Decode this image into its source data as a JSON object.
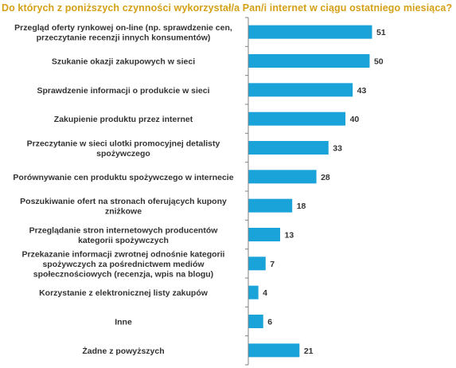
{
  "colors": {
    "title": "#d4a017",
    "bar": "#1aa3d9",
    "axis": "#808080",
    "text": "#333333"
  },
  "chart_data": {
    "type": "bar",
    "orientation": "horizontal",
    "title": "Do których z poniższych czynności wykorzystał/a Pan/i internet w ciągu ostatniego miesiąca?",
    "xlabel": "",
    "ylabel": "",
    "xlim": [
      0,
      51
    ],
    "grid": false,
    "legend": "none",
    "categories": [
      "Przegląd oferty rynkowej on-line (np. sprawdzenie cen, przeczytanie recenzji innych konsumentów)",
      "Szukanie okazji zakupowych w sieci",
      "Sprawdzenie informacji o produkcie w sieci",
      "Zakupienie produktu przez internet",
      "Przeczytanie w sieci ulotki promocyjnej detalisty spożywczego",
      "Porównywanie cen produktu spożywczego w internecie",
      "Poszukiwanie ofert na stronach oferujących kupony zniżkowe",
      "Przeglądanie stron internetowych producentów kategorii spożywczych",
      "Przekazanie informacji zwrotnej odnośnie kategorii spożywczych za pośrednictwem mediów społecznościowych (recenzja, wpis na blogu)",
      "Korzystanie z elektronicznej listy zakupów",
      "Inne",
      "Żadne z powyższych"
    ],
    "label_lines": [
      [
        "Przegląd oferty rynkowej on-line (np. sprawdzenie cen,",
        "przeczytanie recenzji innych konsumentów)"
      ],
      [
        "Szukanie okazji zakupowych w sieci"
      ],
      [
        "Sprawdzenie informacji o produkcie w sieci"
      ],
      [
        "Zakupienie produktu przez internet"
      ],
      [
        "Przeczytanie w sieci ulotki promocyjnej detalisty",
        "spożywczego"
      ],
      [
        "Porównywanie cen produktu spożywczego w internecie"
      ],
      [
        "Poszukiwanie ofert na stronach oferujących kupony",
        "zniżkowe"
      ],
      [
        "Przeglądanie stron internetowych producentów",
        "kategorii spożywczych"
      ],
      [
        "Przekazanie informacji zwrotnej odnośnie kategorii",
        "spożywczych za pośrednictwem mediów",
        "społecznościowych (recenzja, wpis na blogu)"
      ],
      [
        "Korzystanie z elektronicznej listy zakupów"
      ],
      [
        "Inne"
      ],
      [
        "Żadne z powyższych"
      ]
    ],
    "values": [
      51,
      50,
      43,
      40,
      33,
      28,
      18,
      13,
      7,
      4,
      6,
      21
    ]
  }
}
